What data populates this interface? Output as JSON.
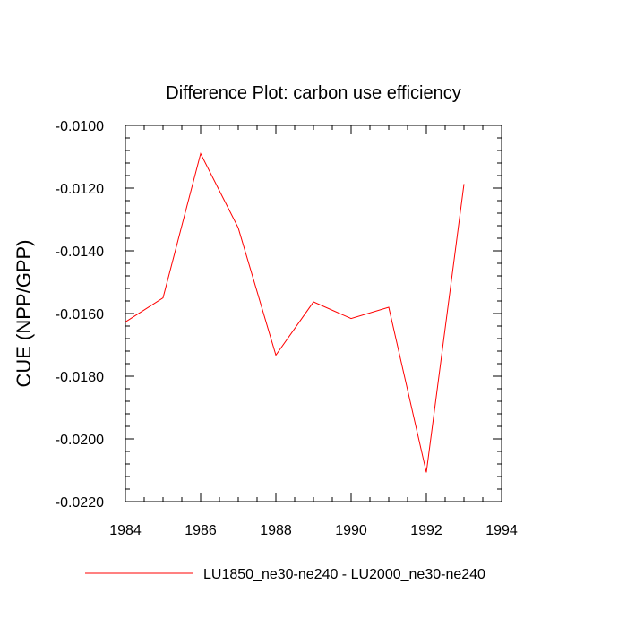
{
  "chart_data": {
    "type": "line",
    "title": "Difference Plot: carbon use efficiency",
    "xlabel": "",
    "ylabel": "CUE  (NPP/GPP)",
    "xlim": [
      1984,
      1994
    ],
    "ylim": [
      -0.022,
      -0.01
    ],
    "x_ticks": [
      1984,
      1986,
      1988,
      1990,
      1992,
      1994
    ],
    "x_tick_labels": [
      "1984",
      "1986",
      "1988",
      "1990",
      "1992",
      "1994"
    ],
    "y_ticks": [
      -0.01,
      -0.012,
      -0.014,
      -0.016,
      -0.018,
      -0.02,
      -0.022
    ],
    "y_tick_labels": [
      "-0.0100",
      "-0.0120",
      "-0.0140",
      "-0.0160",
      "-0.0180",
      "-0.0200",
      "-0.0220"
    ],
    "grid": false,
    "legend_position": "bottom",
    "series": [
      {
        "name": "LU1850_ne30-ne240 - LU2000_ne30-ne240",
        "color": "#ff0000",
        "x": [
          1984,
          1985,
          1986,
          1987,
          1988,
          1989,
          1990,
          1991,
          1992,
          1993
        ],
        "values": [
          -0.01627,
          -0.0155,
          -0.0109,
          -0.01327,
          -0.01733,
          -0.01563,
          -0.01616,
          -0.0158,
          -0.02107,
          -0.01187
        ]
      }
    ]
  }
}
